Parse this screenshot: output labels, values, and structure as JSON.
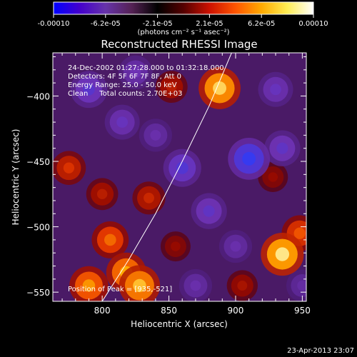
{
  "colorbar": {
    "tick_labels": [
      "-0.00010",
      "-6.2e-05",
      "-2.1e-05",
      "2.1e-05",
      "6.2e-05",
      "0.00010"
    ],
    "unit_label": "(photons cm⁻² s⁻¹ asec⁻²)",
    "colors": [
      "#0000ff",
      "#4400cc",
      "#6633aa",
      "#552255",
      "#000000",
      "#550000",
      "#cc1100",
      "#ff5500",
      "#ffaa00",
      "#ffee55",
      "#ffffff"
    ]
  },
  "annotations": {
    "time_range": "24-Dec-2002 01:27:28.000 to 01:32:18.000",
    "detectors": "Detectors: 4F 5F 6F 7F 8F, Att 0",
    "energy": "Energy Range: 25.0 - 50.0 keV",
    "clean": "Clean     Total counts: 2.70E+03",
    "peak": "Position of Peak = [935,-521]"
  },
  "timestamp": "23-Apr-2013 23:07",
  "chart_data": {
    "type": "heatmap",
    "title": "Reconstructed RHESSI Image",
    "xlabel": "Heliocentric X (arcsec)",
    "ylabel": "Heliocentric Y (arcsec)",
    "xlim": [
      763,
      953
    ],
    "ylim": [
      -557,
      -367
    ],
    "x_ticks": [
      800,
      850,
      900,
      950
    ],
    "y_ticks": [
      -550,
      -500,
      -450,
      -400
    ],
    "limb_points": [
      [
        800,
        -557
      ],
      [
        820,
        -525
      ],
      [
        840,
        -490
      ],
      [
        860,
        -450
      ],
      [
        880,
        -408
      ],
      [
        897,
        -367
      ]
    ],
    "peak_position": [
      935,
      -521
    ],
    "features": [
      {
        "x": 888,
        "y": -394,
        "value": 9e-05
      },
      {
        "x": 852,
        "y": -393,
        "value": 4e-05
      },
      {
        "x": 835,
        "y": -478,
        "value": 4.5e-05
      },
      {
        "x": 806,
        "y": -510,
        "value": 6.5e-05
      },
      {
        "x": 818,
        "y": -535,
        "value": 8e-05
      },
      {
        "x": 790,
        "y": -545,
        "value": 7.5e-05
      },
      {
        "x": 828,
        "y": -545,
        "value": 8.5e-05
      },
      {
        "x": 775,
        "y": -455,
        "value": 5e-05
      },
      {
        "x": 800,
        "y": -475,
        "value": 4e-05
      },
      {
        "x": 935,
        "y": -521,
        "value": 9.5e-05
      },
      {
        "x": 948,
        "y": -505,
        "value": 6e-05
      },
      {
        "x": 905,
        "y": -545,
        "value": 3.5e-05
      },
      {
        "x": 928,
        "y": -462,
        "value": 3e-05
      },
      {
        "x": 855,
        "y": -515,
        "value": 3e-05
      },
      {
        "x": 910,
        "y": -448,
        "value": -9e-05
      },
      {
        "x": 935,
        "y": -440,
        "value": -6e-05
      },
      {
        "x": 790,
        "y": -395,
        "value": -6.5e-05
      },
      {
        "x": 815,
        "y": -420,
        "value": -5.5e-05
      },
      {
        "x": 860,
        "y": -455,
        "value": -7e-05
      },
      {
        "x": 880,
        "y": -488,
        "value": -6e-05
      },
      {
        "x": 930,
        "y": -395,
        "value": -5.5e-05
      },
      {
        "x": 870,
        "y": -545,
        "value": -4.5e-05
      },
      {
        "x": 900,
        "y": -515,
        "value": -4.5e-05
      },
      {
        "x": 825,
        "y": -382,
        "value": -5e-05
      },
      {
        "x": 950,
        "y": -545,
        "value": -4e-05
      },
      {
        "x": 840,
        "y": -430,
        "value": -4.5e-05
      }
    ]
  }
}
